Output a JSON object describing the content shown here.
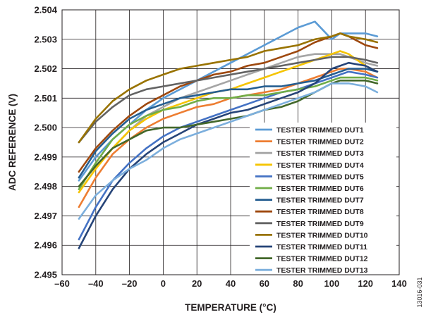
{
  "chart_data": {
    "type": "line",
    "xlabel": "TEMPERATURE (°C)",
    "ylabel": "ADC REFERENCE (V)",
    "xlim": [
      -60,
      140
    ],
    "ylim": [
      2.495,
      2.504
    ],
    "x_ticks": [
      -60,
      -40,
      -20,
      0,
      20,
      40,
      60,
      80,
      100,
      120,
      140
    ],
    "x_tick_labels": [
      "–60",
      "–40",
      "–20",
      "0",
      "20",
      "40",
      "60",
      "80",
      "100",
      "120",
      "140"
    ],
    "y_ticks": [
      2.495,
      2.496,
      2.497,
      2.498,
      2.499,
      2.5,
      2.501,
      2.502,
      2.503,
      2.504
    ],
    "y_tick_labels": [
      "2.495",
      "2.496",
      "2.497",
      "2.498",
      "2.499",
      "2.500",
      "2.501",
      "2.502",
      "2.503",
      "2.504"
    ],
    "grid": true,
    "legend_position": "right",
    "figure_id": "13016-031",
    "x": [
      -50,
      -40,
      -30,
      -20,
      -10,
      0,
      10,
      20,
      30,
      40,
      50,
      60,
      70,
      80,
      90,
      100,
      105,
      110,
      120,
      127
    ],
    "series": [
      {
        "name": "TESTER TRIMMED DUT1",
        "color": "#5b9bd5",
        "values": [
          2.4982,
          2.499,
          2.4996,
          2.5001,
          2.5006,
          2.501,
          2.5013,
          2.5016,
          2.5019,
          2.5022,
          2.5025,
          2.5028,
          2.5031,
          2.5034,
          2.5036,
          2.503,
          2.5032,
          2.5032,
          2.5032,
          2.5031
        ]
      },
      {
        "name": "TESTER TRIMMED DUT2",
        "color": "#ed7d31",
        "values": [
          2.4973,
          2.4983,
          2.4991,
          2.4996,
          2.5,
          2.5003,
          2.5005,
          2.5007,
          2.5008,
          2.501,
          2.5011,
          2.5012,
          2.5013,
          2.5015,
          2.5017,
          2.5019,
          2.502,
          2.502,
          2.5019,
          2.5017
        ]
      },
      {
        "name": "TESTER TRIMMED DUT3",
        "color": "#a5a5a5",
        "values": [
          2.498,
          2.4987,
          2.4993,
          2.4999,
          2.5004,
          2.5007,
          2.501,
          2.5012,
          2.5014,
          2.5016,
          2.5018,
          2.502,
          2.5022,
          2.5024,
          2.5025,
          2.5025,
          2.5025,
          2.5024,
          2.5022,
          2.5021
        ]
      },
      {
        "name": "TESTER TRIMMED DUT4",
        "color": "#f5c400",
        "values": [
          2.4978,
          2.4986,
          2.4993,
          2.4999,
          2.5003,
          2.5006,
          2.5008,
          2.501,
          2.5012,
          2.5013,
          2.5015,
          2.5017,
          2.5019,
          2.5021,
          2.5023,
          2.5025,
          2.5026,
          2.5025,
          2.5021,
          2.5019
        ]
      },
      {
        "name": "TESTER TRIMMED DUT5",
        "color": "#4472c4",
        "values": [
          2.4962,
          2.4973,
          2.4982,
          2.4988,
          2.4993,
          2.4997,
          2.5,
          2.5002,
          2.5004,
          2.5006,
          2.5008,
          2.501,
          2.5012,
          2.5013,
          2.5015,
          2.5017,
          2.5018,
          2.5019,
          2.5018,
          2.5017
        ]
      },
      {
        "name": "TESTER TRIMMED DUT6",
        "color": "#70ad47",
        "values": [
          2.4979,
          2.4988,
          2.4996,
          2.5001,
          2.5004,
          2.5006,
          2.5007,
          2.5009,
          2.501,
          2.501,
          2.5011,
          2.5011,
          2.5012,
          2.5013,
          2.5014,
          2.5016,
          2.5017,
          2.5017,
          2.5017,
          2.5016
        ]
      },
      {
        "name": "TESTER TRIMMED DUT7",
        "color": "#255e91",
        "values": [
          2.4983,
          2.4992,
          2.4998,
          2.5003,
          2.5006,
          2.5008,
          2.501,
          2.5011,
          2.5012,
          2.5013,
          2.5013,
          2.5014,
          2.5014,
          2.5015,
          2.5016,
          2.5018,
          2.5019,
          2.502,
          2.502,
          2.5019
        ]
      },
      {
        "name": "TESTER TRIMMED DUT8",
        "color": "#9e480e",
        "values": [
          2.4985,
          2.4993,
          2.4999,
          2.5004,
          2.5008,
          2.5011,
          2.5014,
          2.5016,
          2.5018,
          2.5019,
          2.5021,
          2.5022,
          2.5024,
          2.5026,
          2.5029,
          2.5031,
          2.5032,
          2.5031,
          2.5028,
          2.5027
        ]
      },
      {
        "name": "TESTER TRIMMED DUT9",
        "color": "#636363",
        "values": [
          2.4995,
          2.5002,
          2.5007,
          2.5011,
          2.5013,
          2.5014,
          2.5015,
          2.5016,
          2.5017,
          2.5018,
          2.5019,
          2.502,
          2.5021,
          2.5022,
          2.5023,
          2.5024,
          2.5024,
          2.5024,
          2.5023,
          2.5022
        ]
      },
      {
        "name": "TESTER TRIMMED DUT10",
        "color": "#997300",
        "values": [
          2.4995,
          2.5003,
          2.5009,
          2.5013,
          2.5016,
          2.5018,
          2.502,
          2.5021,
          2.5022,
          2.5023,
          2.5024,
          2.5026,
          2.5027,
          2.5028,
          2.503,
          2.5031,
          2.5032,
          2.5031,
          2.503,
          2.5029
        ]
      },
      {
        "name": "TESTER TRIMMED DUT11",
        "color": "#264478",
        "values": [
          2.4959,
          2.497,
          2.4979,
          2.4986,
          2.4991,
          2.4995,
          2.4998,
          2.5001,
          2.5003,
          2.5005,
          2.5006,
          2.5008,
          2.501,
          2.5012,
          2.5015,
          2.502,
          2.5021,
          2.5022,
          2.5021,
          2.5019
        ]
      },
      {
        "name": "TESTER TRIMMED DUT12",
        "color": "#43682b",
        "values": [
          2.498,
          2.4987,
          2.4993,
          2.4996,
          2.4999,
          2.5,
          2.5,
          2.5001,
          2.5002,
          2.5003,
          2.5004,
          2.5006,
          2.5007,
          2.5009,
          2.5012,
          2.5015,
          2.5016,
          2.5016,
          2.5016,
          2.5015
        ]
      },
      {
        "name": "TESTER TRIMMED DUT13",
        "color": "#7cafdd",
        "values": [
          2.4969,
          2.4977,
          2.4982,
          2.4986,
          2.4989,
          2.4993,
          2.4996,
          2.4998,
          2.5,
          2.5002,
          2.5004,
          2.5006,
          2.5008,
          2.501,
          2.5012,
          2.5015,
          2.5015,
          2.5015,
          2.5014,
          2.5012
        ]
      }
    ]
  }
}
